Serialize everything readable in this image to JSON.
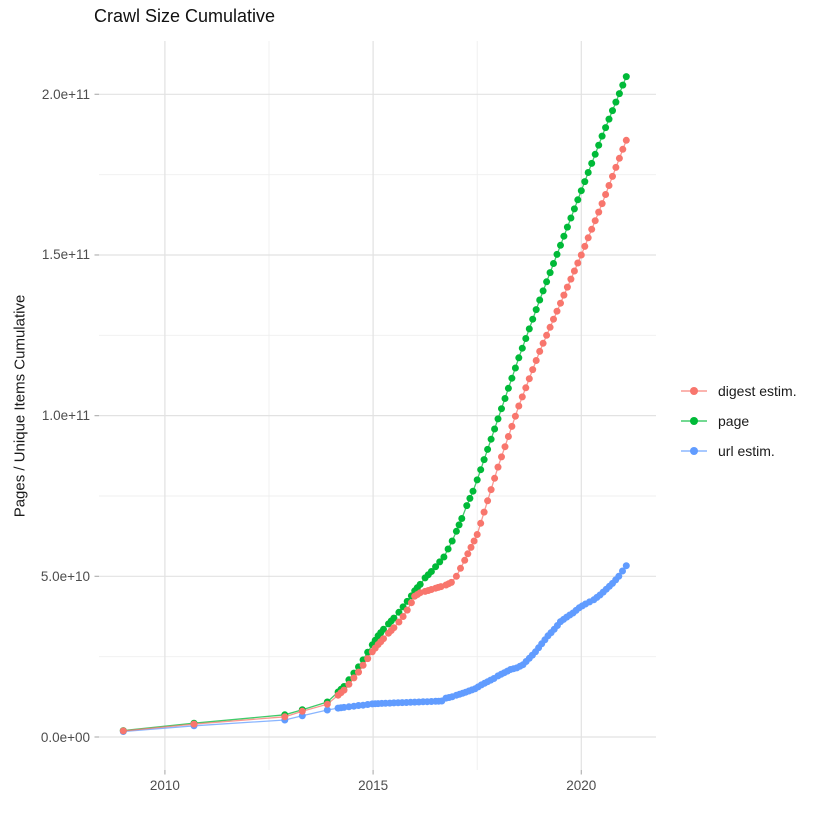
{
  "chart_data": {
    "type": "scatter",
    "title": "Crawl Size Cumulative",
    "xlabel": "",
    "ylabel": "Pages / Unique Items Cumulative",
    "legend_position": "right",
    "x_range": [
      2008.4,
      2021.8
    ],
    "y_range": [
      0,
      205000000000.0
    ],
    "axes": {
      "x_major": [
        {
          "value": 2010,
          "label": "2010"
        },
        {
          "value": 2015,
          "label": "2015"
        },
        {
          "value": 2020,
          "label": "2020"
        }
      ],
      "x_minor": [
        2012.5,
        2017.5
      ],
      "y_major": [
        {
          "value": 0,
          "label": "0.0e+00"
        },
        {
          "value": 50000000000.0,
          "label": "5.0e+10"
        },
        {
          "value": 100000000000.0,
          "label": "1.0e+11"
        },
        {
          "value": 150000000000.0,
          "label": "1.5e+11"
        },
        {
          "value": 200000000000.0,
          "label": "2.0e+11"
        }
      ],
      "y_minor": [
        25000000000.0,
        75000000000.0,
        125000000000.0,
        175000000000.0
      ]
    },
    "series": [
      {
        "name": "digest estim.",
        "color": "#F8766D",
        "points": [
          [
            2009.0,
            1900000000.0
          ],
          [
            2010.7,
            4000000000.0
          ],
          [
            2012.88,
            6300000000.0
          ],
          [
            2013.3,
            8000000000.0
          ],
          [
            2013.9,
            10200000000.0
          ],
          [
            2014.16,
            13000000000.0
          ],
          [
            2014.3,
            14600000000.0
          ],
          [
            2014.42,
            16400000000.0
          ],
          [
            2014.54,
            18400000000.0
          ],
          [
            2014.65,
            20200000000.0
          ],
          [
            2014.76,
            22300000000.0
          ],
          [
            2014.87,
            24400000000.0
          ],
          [
            2014.98,
            26500000000.0
          ],
          [
            2015.12,
            28800000000.0
          ],
          [
            2015.25,
            30600000000.0
          ],
          [
            2015.37,
            32300000000.0
          ],
          [
            2015.5,
            34000000000.0
          ],
          [
            2015.62,
            35800000000.0
          ],
          [
            2015.72,
            37500000000.0
          ],
          [
            2015.82,
            39500000000.0
          ],
          [
            2015.92,
            41800000000.0
          ],
          [
            2016.0,
            43800000000.0
          ],
          [
            2016.13,
            44900000000.0
          ],
          [
            2016.25,
            45300000000.0
          ],
          [
            2016.4,
            45900000000.0
          ],
          [
            2016.5,
            46300000000.0
          ],
          [
            2016.63,
            46800000000.0
          ],
          [
            2016.75,
            47300000000.0
          ],
          [
            2016.88,
            48100000000.0
          ],
          [
            2017.0,
            50000000000.0
          ],
          [
            2017.1,
            52500000000.0
          ],
          [
            2017.2,
            55000000000.0
          ],
          [
            2017.35,
            59000000000.0
          ],
          [
            2017.5,
            63000000000.0
          ],
          [
            2018.0,
            84000000000.0
          ],
          [
            2018.5,
            103000000000.0
          ],
          [
            2019.0,
            120000000000.0
          ],
          [
            2019.5,
            135000000000.0
          ],
          [
            2020.0,
            150000000000.0
          ],
          [
            2020.5,
            166000000000.0
          ],
          [
            2021.08,
            185700000000.0
          ]
        ]
      },
      {
        "name": "page",
        "color": "#00BA38",
        "points": [
          [
            2009.0,
            2000000000.0
          ],
          [
            2010.7,
            4300000000.0
          ],
          [
            2012.88,
            6900000000.0
          ],
          [
            2013.3,
            8500000000.0
          ],
          [
            2013.9,
            10900000000.0
          ],
          [
            2014.16,
            14000000000.0
          ],
          [
            2014.3,
            15700000000.0
          ],
          [
            2014.42,
            17800000000.0
          ],
          [
            2014.54,
            19900000000.0
          ],
          [
            2014.65,
            21800000000.0
          ],
          [
            2014.76,
            24000000000.0
          ],
          [
            2014.87,
            26400000000.0
          ],
          [
            2014.98,
            28700000000.0
          ],
          [
            2015.12,
            31500000000.0
          ],
          [
            2015.25,
            33500000000.0
          ],
          [
            2015.37,
            35200000000.0
          ],
          [
            2015.5,
            37000000000.0
          ],
          [
            2015.62,
            38800000000.0
          ],
          [
            2015.72,
            40500000000.0
          ],
          [
            2015.82,
            42200000000.0
          ],
          [
            2015.92,
            43900000000.0
          ],
          [
            2016.0,
            45500000000.0
          ],
          [
            2016.13,
            47500000000.0
          ],
          [
            2016.25,
            49500000000.0
          ],
          [
            2016.4,
            51500000000.0
          ],
          [
            2016.5,
            53000000000.0
          ],
          [
            2016.6,
            54500000000.0
          ],
          [
            2016.7,
            56000000000.0
          ],
          [
            2016.8,
            58500000000.0
          ],
          [
            2016.9,
            61000000000.0
          ],
          [
            2017.0,
            64000000000.0
          ],
          [
            2017.13,
            68000000000.0
          ],
          [
            2017.25,
            72000000000.0
          ],
          [
            2017.4,
            76500000000.0
          ],
          [
            2017.5,
            80000000000.0
          ],
          [
            2018.0,
            99000000000.0
          ],
          [
            2018.5,
            118000000000.0
          ],
          [
            2019.0,
            136000000000.0
          ],
          [
            2019.5,
            153000000000.0
          ],
          [
            2020.0,
            170000000000.0
          ],
          [
            2020.5,
            187000000000.0
          ],
          [
            2021.08,
            205500000000.0
          ]
        ]
      },
      {
        "name": "url estim.",
        "color": "#619CFF",
        "points": [
          [
            2009.0,
            1700000000.0
          ],
          [
            2010.7,
            3500000000.0
          ],
          [
            2012.88,
            5300000000.0
          ],
          [
            2013.3,
            6600000000.0
          ],
          [
            2013.9,
            8400000000.0
          ],
          [
            2014.16,
            9000000000.0
          ],
          [
            2014.3,
            9200000000.0
          ],
          [
            2014.42,
            9400000000.0
          ],
          [
            2014.54,
            9600000000.0
          ],
          [
            2014.65,
            9800000000.0
          ],
          [
            2014.76,
            9900000000.0
          ],
          [
            2014.87,
            10100000000.0
          ],
          [
            2014.98,
            10300000000.0
          ],
          [
            2015.12,
            10400000000.0
          ],
          [
            2015.3,
            10500000000.0
          ],
          [
            2015.5,
            10600000000.0
          ],
          [
            2015.7,
            10700000000.0
          ],
          [
            2015.9,
            10800000000.0
          ],
          [
            2016.1,
            10900000000.0
          ],
          [
            2016.3,
            11000000000.0
          ],
          [
            2016.5,
            11100000000.0
          ],
          [
            2016.65,
            11200000000.0
          ],
          [
            2016.75,
            12100000000.0
          ],
          [
            2016.9,
            12500000000.0
          ],
          [
            2017.0,
            13000000000.0
          ],
          [
            2017.15,
            13600000000.0
          ],
          [
            2017.3,
            14300000000.0
          ],
          [
            2017.45,
            15000000000.0
          ],
          [
            2017.6,
            16200000000.0
          ],
          [
            2017.75,
            17200000000.0
          ],
          [
            2017.9,
            18200000000.0
          ],
          [
            2018.0,
            19000000000.0
          ],
          [
            2018.15,
            20000000000.0
          ],
          [
            2018.3,
            21000000000.0
          ],
          [
            2018.45,
            21500000000.0
          ],
          [
            2018.6,
            22500000000.0
          ],
          [
            2018.75,
            24500000000.0
          ],
          [
            2018.9,
            26500000000.0
          ],
          [
            2019.05,
            29000000000.0
          ],
          [
            2019.2,
            31500000000.0
          ],
          [
            2019.35,
            33500000000.0
          ],
          [
            2019.5,
            35900000000.0
          ],
          [
            2019.65,
            37300000000.0
          ],
          [
            2019.8,
            38600000000.0
          ],
          [
            2019.95,
            40200000000.0
          ],
          [
            2020.1,
            41400000000.0
          ],
          [
            2020.3,
            42700000000.0
          ],
          [
            2020.45,
            44200000000.0
          ],
          [
            2020.6,
            46000000000.0
          ],
          [
            2020.75,
            47800000000.0
          ],
          [
            2020.9,
            50000000000.0
          ],
          [
            2021.08,
            53300000000.0
          ]
        ]
      }
    ]
  },
  "colors": {
    "background": "#FFFFFF",
    "grid_major": "#E2E2E2",
    "grid_minor": "#EFEFEF",
    "tick": "#B3B3B3",
    "axis_text": "#4D4D4D",
    "title_text": "#111111"
  }
}
